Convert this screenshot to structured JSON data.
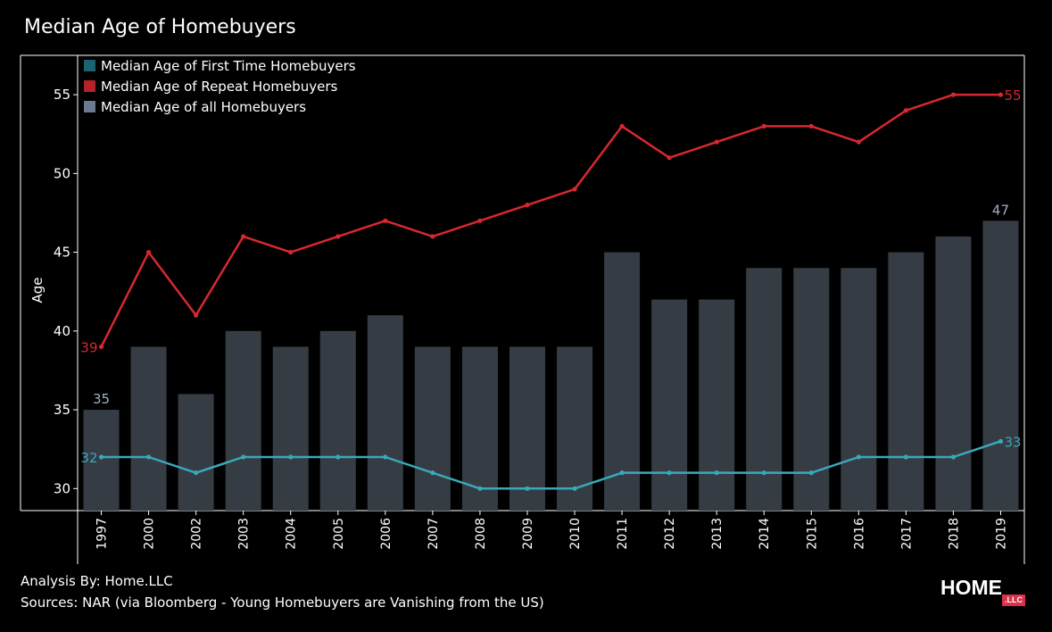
{
  "title": "Median Age of Homebuyers",
  "footer": {
    "analysis": "Analysis By: Home.LLC",
    "sources": "Sources: NAR (via Bloomberg - Young Homebuyers are Vanishing from the US)"
  },
  "logo": {
    "text": "HOME",
    "badge": ".LLC"
  },
  "colors": {
    "background": "#000000",
    "bars": "#353c44",
    "repeat_line": "#d7282f",
    "first_time_line": "#3aa8ba",
    "legend_first_time": "#1a6472",
    "legend_repeat": "#b22227",
    "legend_all": "#6c7a90",
    "bar_label": "#9fb0c8",
    "axis": "#ffffff"
  },
  "chart_data": {
    "type": "bar",
    "title": "Median Age of Homebuyers",
    "xlabel": "",
    "ylabel": "Age",
    "ylim": [
      28.6,
      57.5
    ],
    "yticks": [
      30,
      35,
      40,
      45,
      50,
      55
    ],
    "grid": false,
    "legend_placement": "top-left",
    "categories": [
      "1997",
      "2000",
      "2002",
      "2003",
      "2004",
      "2005",
      "2006",
      "2007",
      "2008",
      "2009",
      "2010",
      "2011",
      "2012",
      "2013",
      "2014",
      "2015",
      "2016",
      "2017",
      "2018",
      "2019"
    ],
    "series": [
      {
        "name": "Median Age of First Time Homebuyers",
        "type": "line",
        "values": [
          32,
          32,
          31,
          32,
          32,
          32,
          32,
          31,
          30,
          30,
          30,
          31,
          31,
          31,
          31,
          31,
          32,
          32,
          32,
          33
        ]
      },
      {
        "name": "Median Age of Repeat Homebuyers",
        "type": "line",
        "values": [
          39,
          45,
          41,
          46,
          45,
          46,
          47,
          46,
          47,
          48,
          49,
          53,
          51,
          52,
          53,
          53,
          52,
          54,
          55,
          55
        ]
      },
      {
        "name": "Median Age of all Homebuyers",
        "type": "bar",
        "values": [
          35,
          39,
          36,
          40,
          39,
          40,
          41,
          39,
          39,
          39,
          39,
          45,
          42,
          42,
          44,
          44,
          44,
          45,
          46,
          47
        ]
      }
    ],
    "annotations": {
      "first_time_start": "32",
      "first_time_end": "33",
      "repeat_start": "39",
      "repeat_end": "55",
      "all_start": "35",
      "all_end": "47"
    }
  }
}
